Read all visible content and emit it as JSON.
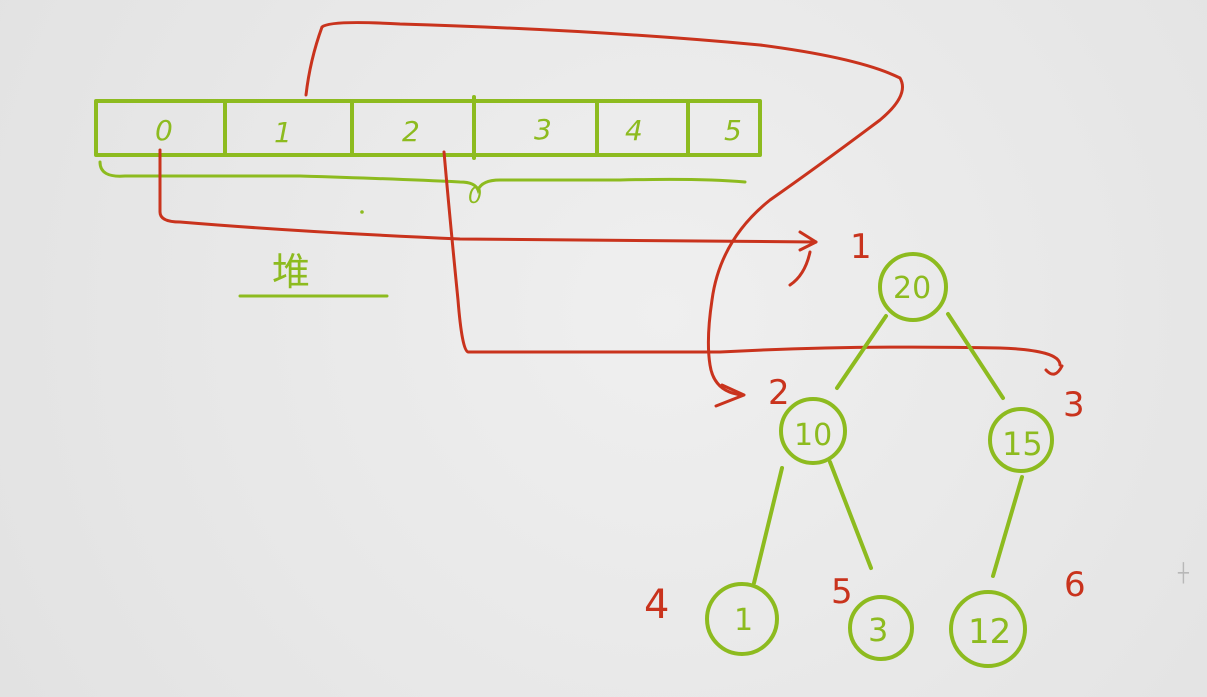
{
  "array": {
    "cells": [
      "0",
      "1",
      "2",
      "3",
      "4",
      "5"
    ],
    "brace_label": "0"
  },
  "label_under_brace": "堆",
  "tree": {
    "nodes": [
      {
        "id": "root",
        "value": "20",
        "index": "1"
      },
      {
        "id": "n2",
        "value": "10",
        "index": "2"
      },
      {
        "id": "n3",
        "value": "15",
        "index": "3"
      },
      {
        "id": "n4",
        "value": "1",
        "index": "4"
      },
      {
        "id": "n5",
        "value": "3",
        "index": "5"
      },
      {
        "id": "n6",
        "value": "12",
        "index": "6"
      }
    ]
  },
  "colors": {
    "green": "#8dbb1f",
    "red": "#c9331d",
    "background": "#e9e9e9"
  }
}
